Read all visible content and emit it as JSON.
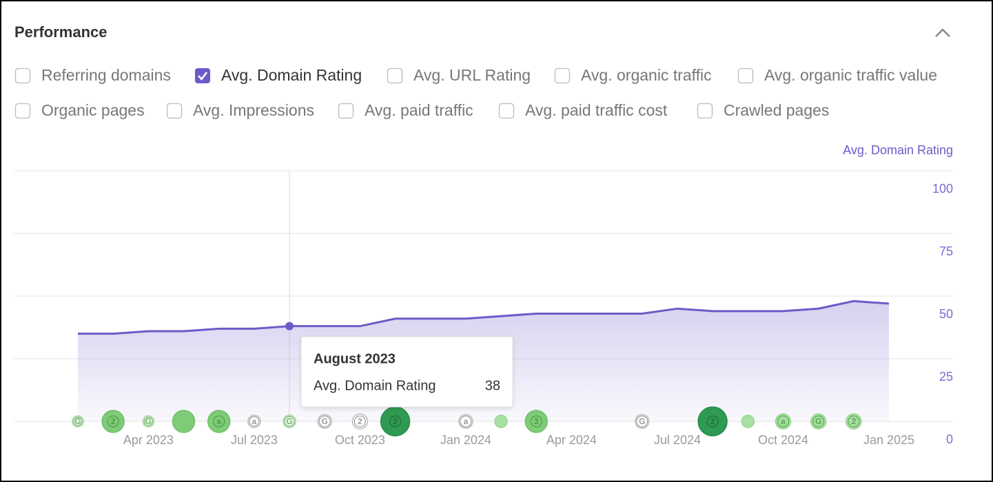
{
  "header": {
    "title": "Performance"
  },
  "metrics": [
    {
      "label": "Referring domains",
      "checked": false
    },
    {
      "label": "Avg. Domain Rating",
      "checked": true
    },
    {
      "label": "Avg. URL Rating",
      "checked": false
    },
    {
      "label": "Avg. organic traffic",
      "checked": false
    },
    {
      "label": "Avg. organic traffic value",
      "checked": false
    },
    {
      "label": "Organic pages",
      "checked": false
    },
    {
      "label": "Avg. Impressions",
      "checked": false
    },
    {
      "label": "Avg. paid traffic",
      "checked": false
    },
    {
      "label": "Avg. paid traffic cost",
      "checked": false
    },
    {
      "label": "Crawled pages",
      "checked": false
    }
  ],
  "chart_data": {
    "type": "area",
    "y_axis_label": "Avg. Domain Rating",
    "categories": [
      null,
      null,
      "Apr 2023",
      null,
      null,
      "Jul 2023",
      null,
      null,
      "Oct 2023",
      null,
      null,
      "Jan 2024",
      null,
      null,
      "Apr 2024",
      null,
      null,
      "Jul 2024",
      null,
      null,
      "Oct 2024",
      null,
      null,
      "Jan 2025"
    ],
    "series": [
      {
        "name": "Avg. Domain Rating",
        "color": "#6b5bc8",
        "values": [
          35,
          35,
          36,
          36,
          37,
          37,
          38,
          38,
          38,
          41,
          41,
          41,
          42,
          43,
          43,
          43,
          43,
          45,
          44,
          44,
          44,
          45,
          48,
          47
        ]
      }
    ],
    "ylim": [
      0,
      100
    ],
    "yticks": [
      0,
      25,
      50,
      75,
      100
    ],
    "grid": true,
    "tooltip": {
      "title": "August 2023",
      "label": "Avg. Domain Rating"
    },
    "annotations": [
      "G",
      "2",
      "G",
      "a",
      "a",
      "G",
      "G",
      "2",
      "2",
      "a",
      "3",
      "G",
      "2",
      "a",
      "G",
      "2"
    ]
  }
}
